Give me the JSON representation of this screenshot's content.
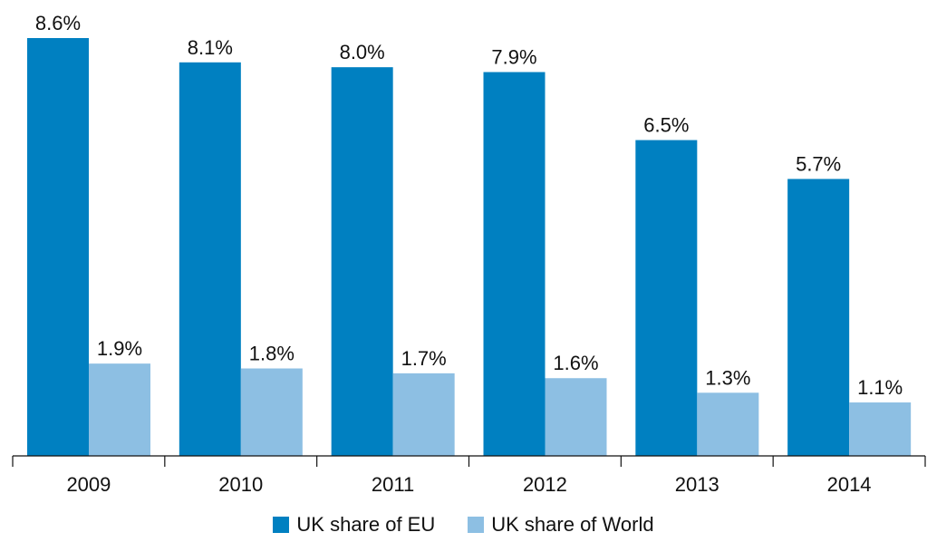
{
  "chart_data": {
    "type": "bar",
    "categories": [
      "2009",
      "2010",
      "2011",
      "2012",
      "2013",
      "2014"
    ],
    "series": [
      {
        "name": "UK share of EU",
        "values": [
          8.6,
          8.1,
          8.0,
          7.9,
          6.5,
          5.7
        ],
        "labels": [
          "8.6%",
          "8.1%",
          "8.0%",
          "7.9%",
          "6.5%",
          "5.7%"
        ],
        "color": "#0080c1"
      },
      {
        "name": "UK share of World",
        "values": [
          1.9,
          1.8,
          1.7,
          1.6,
          1.3,
          1.1
        ],
        "labels": [
          "1.9%",
          "1.8%",
          "1.7%",
          "1.6%",
          "1.3%",
          "1.1%"
        ],
        "color": "#8dbfe3"
      }
    ],
    "ylim": [
      0,
      8.6
    ],
    "grid": false,
    "legend": "bottom"
  }
}
